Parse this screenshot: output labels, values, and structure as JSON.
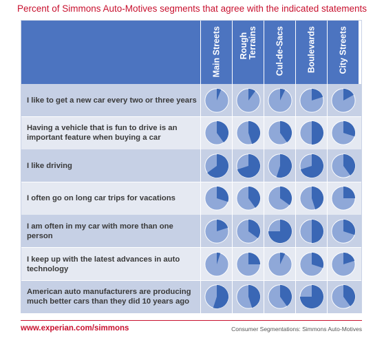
{
  "title": "Percent of Simmons Auto-Motives segments that agree with the indicated statements",
  "footer": {
    "url": "www.experian.com/simmons",
    "note": "Consumer Segmentations: Simmons Auto-Motives"
  },
  "colors": {
    "title_red": "#c8102e",
    "header_blue": "#4c74c0",
    "row_dark": "#c6d0e5",
    "row_light": "#e5e9f2",
    "pie_fill": "#3a67b5",
    "pie_base": "#8fa8d8"
  },
  "chart_data": {
    "type": "pie-matrix",
    "columns": [
      "Main Streets",
      "Rough\nTerrains",
      "Cul-de-Sacs",
      "Boulevards",
      "City Streets"
    ],
    "rows": [
      {
        "statement": "I like to get a new car every two or three years",
        "values": [
          0.06,
          0.1,
          0.07,
          0.2,
          0.17
        ]
      },
      {
        "statement": "Having a vehicle that is fun to drive is an important feature when buying a car",
        "values": [
          0.4,
          0.45,
          0.4,
          0.5,
          0.3
        ]
      },
      {
        "statement": "I like driving",
        "values": [
          0.65,
          0.7,
          0.55,
          0.7,
          0.4
        ]
      },
      {
        "statement": "I often go on long car trips for vacations",
        "values": [
          0.3,
          0.4,
          0.35,
          0.45,
          0.25
        ]
      },
      {
        "statement": "I am often in my car with more than one person",
        "values": [
          0.2,
          0.35,
          0.75,
          0.5,
          0.3
        ]
      },
      {
        "statement": "I keep up with the latest advances in auto technology",
        "values": [
          0.05,
          0.25,
          0.07,
          0.3,
          0.2
        ]
      },
      {
        "statement": "American auto manufacturers are producing much better cars than they did 10 years ago",
        "values": [
          0.55,
          0.45,
          0.4,
          0.75,
          0.4
        ]
      }
    ]
  }
}
